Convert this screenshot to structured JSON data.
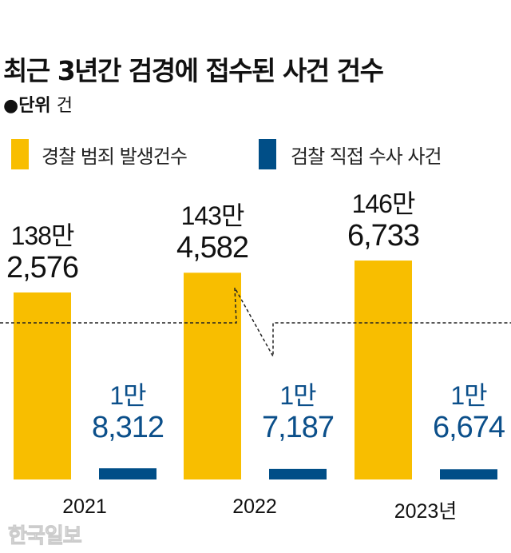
{
  "title": "최근 3년간 검경에 접수된 사건 건수",
  "unit_label": "●단위",
  "unit_value": "건",
  "watermark": "한국일보",
  "colors": {
    "police": "#F8BE00",
    "prosecution": "#004E87",
    "prosecution_text": "#0B4F8A"
  },
  "chart_data": {
    "type": "bar",
    "title": "최근 3년간 검경에 접수된 사건 건수",
    "categories": [
      "2021",
      "2022",
      "2023년"
    ],
    "axis_break": true,
    "grid": false,
    "legend_placement": "top",
    "series": [
      {
        "name": "경찰 범죄 발생건수",
        "values": [
          1382576,
          1434582,
          1466733
        ],
        "labels": [
          [
            "138만",
            "2,576"
          ],
          [
            "143만",
            "4,582"
          ],
          [
            "146만",
            "6,733"
          ]
        ]
      },
      {
        "name": "검찰 직접 수사 사건",
        "values": [
          18312,
          17187,
          16674
        ],
        "labels": [
          [
            "1만",
            "8,312"
          ],
          [
            "1만",
            "7,187"
          ],
          [
            "1만",
            "6,674"
          ]
        ]
      }
    ]
  }
}
